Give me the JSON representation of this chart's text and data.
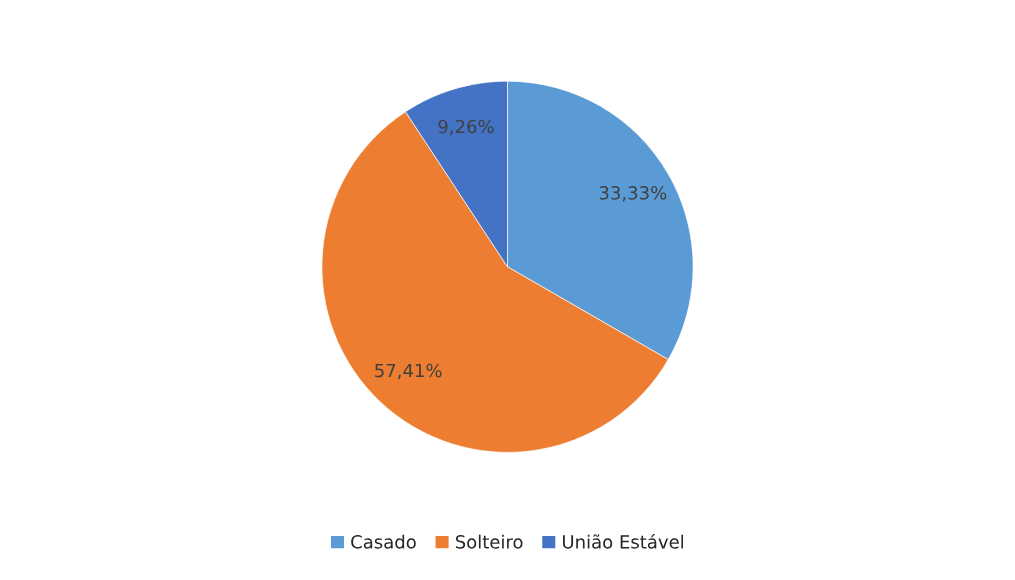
{
  "chart_data": {
    "type": "pie",
    "categories": [
      "Casado",
      "Solteiro",
      "União Estável"
    ],
    "values": [
      33.33,
      57.41,
      9.26
    ],
    "colors": [
      "#5b9bd5",
      "#ed7d31",
      "#4472c4"
    ],
    "value_labels": [
      "33,33%",
      "57,41%",
      "9,26%"
    ],
    "legend": "bottom"
  }
}
